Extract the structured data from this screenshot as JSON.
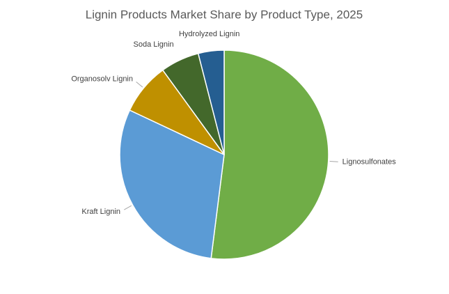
{
  "chart_data": {
    "type": "pie",
    "title": "Lignin Products Market Share by Product Type, 2025",
    "categories": [
      "Lignosulfonates",
      "Kraft Lignin",
      "Organosolv Lignin",
      "Soda Lignin",
      "Hydrolyzed Lignin"
    ],
    "values": [
      52,
      30,
      8,
      6,
      4
    ],
    "colors": [
      "#70ad47",
      "#5b9bd5",
      "#bf9000",
      "#43682b",
      "#255e91"
    ]
  }
}
